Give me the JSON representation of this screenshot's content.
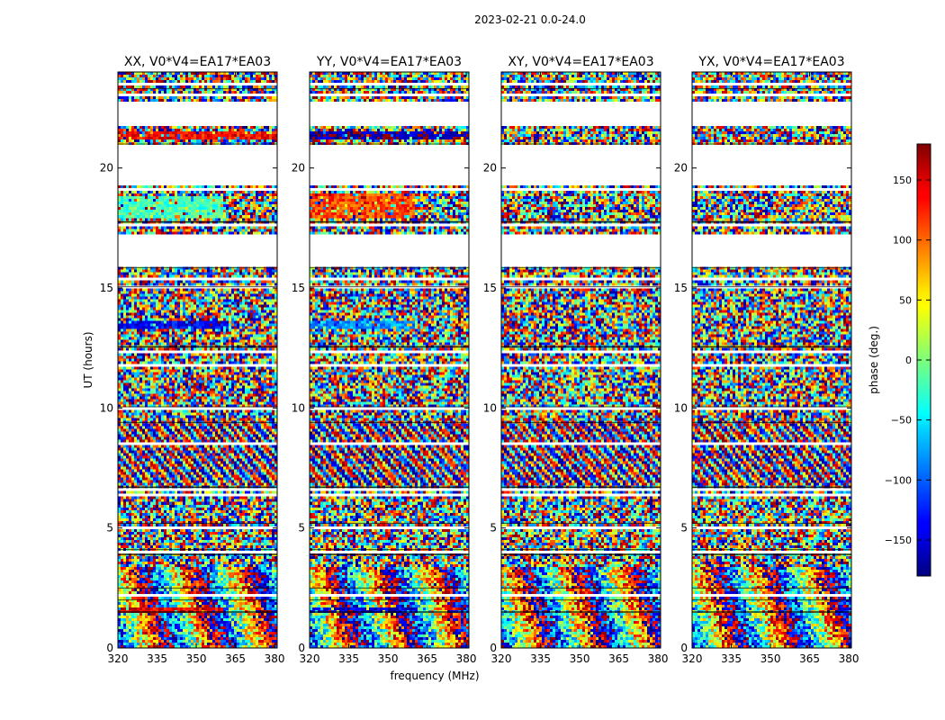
{
  "chart_data": {
    "type": "heatmap",
    "suptitle": "2023-02-21 0.0-24.0",
    "xlabel": "frequency (MHz)",
    "ylabel": "UT (hours)",
    "xlim": [
      320,
      381
    ],
    "ylim": [
      0,
      24
    ],
    "xticks": [
      320,
      335,
      350,
      365,
      380
    ],
    "yticks": [
      0,
      5,
      10,
      15,
      20
    ],
    "panels": [
      {
        "id": "xx",
        "title": "XX, V0*V4=EA17*EA03"
      },
      {
        "id": "yy",
        "title": "YY, V0*V4=EA17*EA03"
      },
      {
        "id": "xy",
        "title": "XY, V0*V4=EA17*EA03"
      },
      {
        "id": "yx",
        "title": "YX, V0*V4=EA17*EA03"
      }
    ],
    "colorbar": {
      "label": "phase (deg.)",
      "range": [
        -180,
        180
      ],
      "ticks": [
        -150,
        -100,
        -50,
        0,
        50,
        100,
        150
      ],
      "tick_labels": [
        "−150",
        "−100",
        "−50",
        "0",
        "50",
        "100",
        "150"
      ],
      "colormap": "jet"
    },
    "blank_ut_ranges": [
      [
        15.9,
        16.0
      ],
      [
        16.0,
        17.2
      ],
      [
        19.3,
        21.0
      ],
      [
        21.8,
        22.8
      ]
    ],
    "coherent_bands": [
      {
        "panel": "xx",
        "ut": [
          13.3,
          13.6
        ],
        "freq": [
          320,
          362
        ],
        "phase_deg": -140
      },
      {
        "panel": "yy",
        "ut": [
          13.3,
          13.6
        ],
        "freq": [
          320,
          360
        ],
        "phase_deg": -80
      },
      {
        "panel": "xx",
        "ut": [
          17.9,
          18.8
        ],
        "freq": [
          320,
          360
        ],
        "phase_deg": -20
      },
      {
        "panel": "yy",
        "ut": [
          17.9,
          18.9
        ],
        "freq": [
          320,
          360
        ],
        "phase_deg": 110
      },
      {
        "panel": "xx",
        "ut": [
          21.2,
          21.5
        ],
        "freq": [
          320,
          381
        ],
        "phase_deg": 135
      },
      {
        "panel": "yy",
        "ut": [
          21.2,
          21.5
        ],
        "freq": [
          320,
          381
        ],
        "phase_deg": -165
      },
      {
        "panel": "xx",
        "ut": [
          1.5,
          1.7
        ],
        "freq": [
          320,
          360
        ],
        "phase_deg": 140
      },
      {
        "panel": "yy",
        "ut": [
          1.5,
          1.7
        ],
        "freq": [
          320,
          360
        ],
        "phase_deg": -150
      }
    ]
  }
}
